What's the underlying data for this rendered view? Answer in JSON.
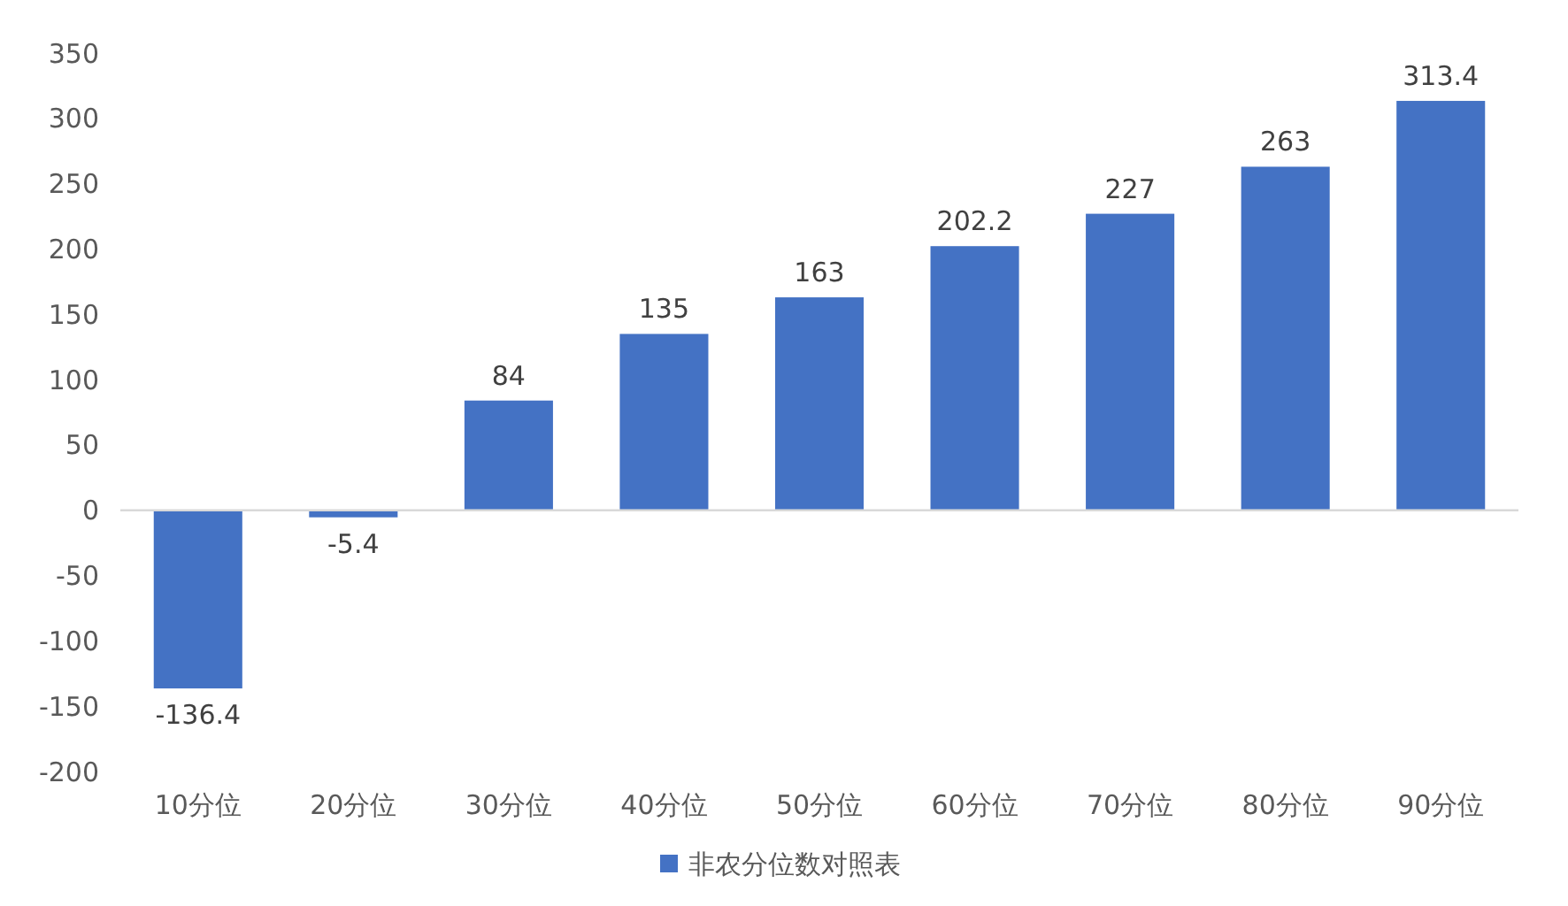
{
  "chart_data": {
    "type": "bar",
    "categories": [
      "10分位",
      "20分位",
      "30分位",
      "40分位",
      "50分位",
      "60分位",
      "70分位",
      "80分位",
      "90分位"
    ],
    "series": [
      {
        "name": "非农分位数对照表",
        "color": "#4472c4",
        "values": [
          -136.4,
          -5.4,
          84,
          135,
          163,
          202.2,
          227,
          263,
          313.4
        ]
      }
    ],
    "ylim": [
      -200,
      350
    ],
    "yticks": [
      -200,
      -150,
      -100,
      -50,
      0,
      50,
      100,
      150,
      200,
      250,
      300,
      350
    ],
    "data_labels": true,
    "legend": "bottom"
  }
}
